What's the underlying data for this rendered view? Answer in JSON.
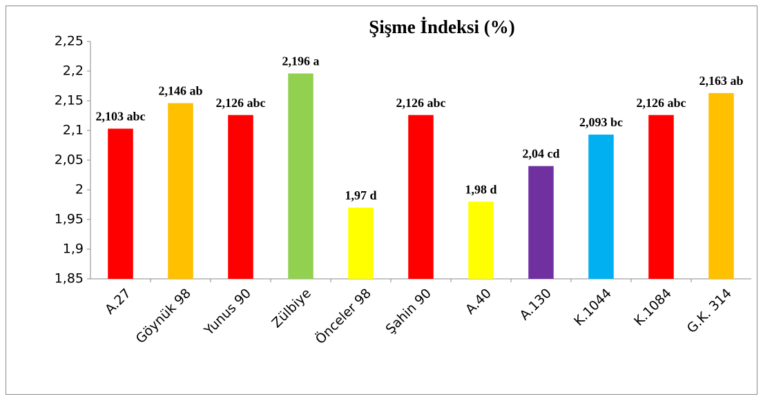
{
  "chart_data": {
    "type": "bar",
    "title": "Şişme İndeksi (%)",
    "categories": [
      "A.27",
      "Göynük 98",
      "Yunus 90",
      "Zülbiye",
      "Önceler 98",
      "Şahin 90",
      "A.40",
      "A.130",
      "K.1044",
      "K.1084",
      "G.K. 314"
    ],
    "values": [
      2.103,
      2.146,
      2.126,
      2.196,
      1.97,
      2.126,
      1.98,
      2.04,
      2.093,
      2.126,
      2.163
    ],
    "value_labels": [
      "2,103 abc",
      "2,146 ab",
      "2,126 abc",
      "2,196 a",
      "1,97 d",
      "2,126 abc",
      "1,98 d",
      "2,04 cd",
      "2,093 bc",
      "2,126 abc",
      "2,163 ab"
    ],
    "colors": [
      "#ff0000",
      "#ffc000",
      "#ff0000",
      "#92d050",
      "#ffff00",
      "#ff0000",
      "#ffff00",
      "#7030a0",
      "#00b0f0",
      "#ff0000",
      "#ffc000"
    ],
    "ylim": [
      1.85,
      2.25
    ],
    "yticks": [
      {
        "value": 1.85,
        "label": "1,85"
      },
      {
        "value": 1.9,
        "label": "1,9"
      },
      {
        "value": 1.95,
        "label": "1,95"
      },
      2,
      {
        "value": 2.05,
        "label": "2,05"
      },
      {
        "value": 2.1,
        "label": "2,1"
      },
      {
        "value": 2.15,
        "label": "2,15"
      },
      {
        "value": 2.2,
        "label": "2,2"
      },
      {
        "value": 2.25,
        "label": "2,25"
      }
    ],
    "grid": false
  }
}
